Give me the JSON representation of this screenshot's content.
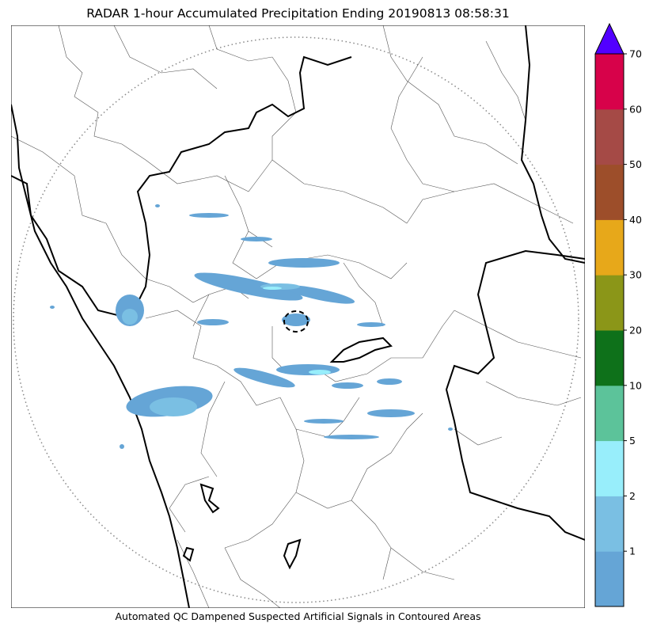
{
  "title": "RADAR 1-hour Accumulated Precipitation Ending 20190813 08:58:31",
  "caption": "Automated QC Dampened Suspected Artificial Signals in Contoured Areas",
  "colorbar": {
    "levels": [
      {
        "min": 0,
        "max": 1,
        "color": "#65a5d6"
      },
      {
        "min": 1,
        "max": 2,
        "color": "#7abfe3"
      },
      {
        "min": 2,
        "max": 5,
        "color": "#98eefb"
      },
      {
        "min": 5,
        "max": 10,
        "color": "#5cc39a"
      },
      {
        "min": 10,
        "max": 20,
        "color": "#0e711a"
      },
      {
        "min": 20,
        "max": 30,
        "color": "#8b9618"
      },
      {
        "min": 30,
        "max": 40,
        "color": "#e7a81a"
      },
      {
        "min": 40,
        "max": 50,
        "color": "#9d4e2a"
      },
      {
        "min": 50,
        "max": 60,
        "color": "#a54a46"
      },
      {
        "min": 60,
        "max": 70,
        "color": "#d7024a"
      }
    ],
    "extend_color": "#5200ff",
    "tick_labels": [
      "1",
      "2",
      "5",
      "10",
      "20",
      "30",
      "40",
      "50",
      "60",
      "70"
    ]
  },
  "map_colors": {
    "coast": "#000000",
    "district": "#555555",
    "range_ring": "#888888",
    "rain_light": "#65a5d6",
    "rain_medium": "#7abfe3",
    "rain_cyan": "#98eefb"
  }
}
